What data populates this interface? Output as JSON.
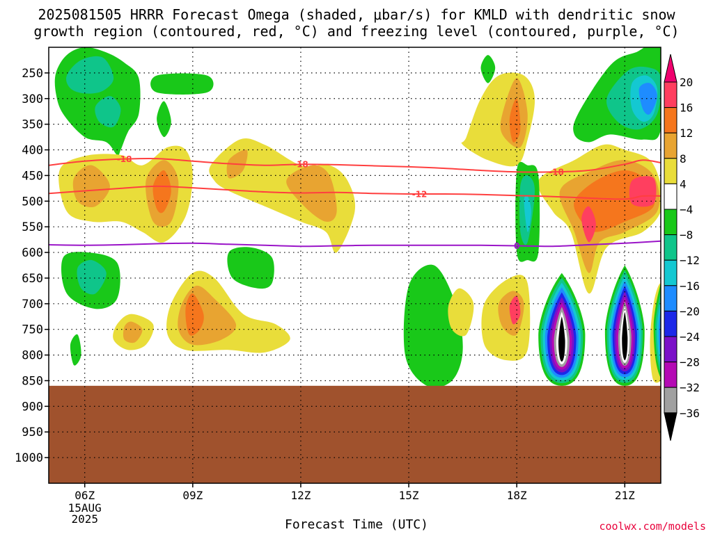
{
  "title_line1": "2025081505 HRRR Forecast Omega (shaded, μbar/s) for KMLD with dendritic snow",
  "title_line2": "growth region (contoured, red, °C) and freezing level (contoured, purple, °C)",
  "credit": "coolwx.com/models",
  "chart_data": {
    "type": "heatmap",
    "xlabel": "Forecast Time (UTC)",
    "ylabel": "",
    "x_ticks": [
      "06Z",
      "09Z",
      "12Z",
      "15Z",
      "18Z",
      "21Z"
    ],
    "x_tick_hours": [
      6,
      9,
      12,
      15,
      18,
      21
    ],
    "x_date_label": [
      "15AUG",
      "2025"
    ],
    "xlim": [
      5,
      22
    ],
    "y_ticks": [
      250,
      300,
      350,
      400,
      450,
      500,
      550,
      600,
      650,
      700,
      750,
      800,
      850,
      900,
      950,
      1000
    ],
    "ylim_hpa": [
      200,
      1050
    ],
    "ground_level_hpa": 860,
    "ground_color": "#a0522d",
    "grid": true,
    "colorbar": {
      "labels": [
        "20",
        "16",
        "12",
        "8",
        "4",
        "−4",
        "−8",
        "−12",
        "−16",
        "−20",
        "−24",
        "−28",
        "−32",
        "−36"
      ],
      "colors": [
        "#ff3f5f",
        "#f5761d",
        "#e8a431",
        "#e9dd3a",
        "#ffffff",
        "#19c819",
        "#0fc58a",
        "#14c8d2",
        "#1e8cff",
        "#1c28e8",
        "#7b10c8",
        "#b40ab4",
        "#a0a0a0"
      ],
      "top_color": "#f0006e",
      "bottom_color": "#000000"
    },
    "dgz_contours": [
      {
        "label": "-18",
        "hour": [
          5,
          6,
          7,
          8,
          9,
          10,
          11,
          12,
          13,
          14,
          15,
          16,
          17,
          18,
          19,
          20,
          21,
          21.5,
          22
        ],
        "hpa": [
          430,
          422,
          418,
          417,
          422,
          427,
          430,
          428,
          429,
          431,
          433,
          436,
          440,
          443,
          443,
          440,
          428,
          420,
          425
        ]
      },
      {
        "label": "-12",
        "hour": [
          5,
          6,
          7,
          8,
          9,
          10,
          11,
          12,
          13,
          14,
          15,
          16,
          17,
          18,
          19,
          20,
          21,
          21.5,
          22
        ],
        "hpa": [
          485,
          480,
          475,
          471,
          474,
          478,
          482,
          484,
          483,
          485,
          486,
          486,
          487,
          489,
          491,
          494,
          496,
          490,
          490
        ]
      }
    ],
    "freezing_level": {
      "label": "0",
      "hour": [
        5,
        6,
        7,
        8,
        9,
        10,
        11,
        12,
        13,
        14,
        15,
        16,
        17,
        18,
        19,
        20,
        21,
        22
      ],
      "hpa": [
        585,
        586,
        585,
        583,
        582,
        584,
        586,
        588,
        587,
        586,
        586,
        586,
        586,
        587,
        588,
        585,
        582,
        578
      ]
    },
    "omega_regions": [
      {
        "name": "upper-left-up",
        "color": "#19c819",
        "hour": [
          5.2,
          5.5,
          6.0,
          6.6,
          7.1,
          7.5,
          7.5,
          7.2,
          7.0,
          6.9,
          6.6,
          6.0,
          5.4,
          5.2
        ],
        "hpa": [
          250,
          215,
          200,
          210,
          230,
          260,
          330,
          365,
          400,
          410,
          385,
          375,
          330,
          290
        ]
      },
      {
        "name": "upper-left-core",
        "color": "#0fc58a",
        "hour": [
          5.5,
          5.9,
          6.5,
          6.8,
          6.5,
          6.0,
          5.6
        ],
        "hpa": [
          255,
          225,
          220,
          260,
          285,
          290,
          280
        ]
      },
      {
        "name": "upper-left-core-2",
        "color": "#0fc58a",
        "hour": [
          6.3,
          6.7,
          7.0,
          6.8,
          6.4
        ],
        "hpa": [
          315,
          295,
          320,
          355,
          345
        ]
      },
      {
        "name": "upper-mid-up",
        "color": "#19c819",
        "hour": [
          8.0,
          9.4,
          9.4,
          8.0
        ],
        "hpa": [
          255,
          255,
          288,
          288
        ]
      },
      {
        "name": "upper-mid-up-2",
        "color": "#19c819",
        "hour": [
          8.0,
          8.2,
          8.4,
          8.2
        ],
        "hpa": [
          340,
          305,
          345,
          375
        ]
      },
      {
        "name": "upper-right-up",
        "color": "#19c819",
        "hour": [
          19.7,
          20.6,
          21.3,
          22.0,
          22.0,
          21.5,
          20.6,
          20.0,
          19.6
        ],
        "hpa": [
          330,
          235,
          210,
          200,
          360,
          380,
          370,
          385,
          370
        ]
      },
      {
        "name": "upper-right-core",
        "color": "#0fc58a",
        "hour": [
          20.5,
          21.1,
          21.7,
          22.0,
          21.9,
          21.4,
          20.8
        ],
        "hpa": [
          300,
          245,
          240,
          260,
          330,
          360,
          345
        ]
      },
      {
        "name": "upper-right-core-2",
        "color": "#14c8d2",
        "hour": [
          21.2,
          21.6,
          21.9,
          21.8,
          21.5,
          21.2
        ],
        "hpa": [
          270,
          255,
          280,
          330,
          345,
          320
        ]
      },
      {
        "name": "upper-right-core-3",
        "color": "#1e8cff",
        "hour": [
          21.4,
          21.7,
          21.9,
          21.7,
          21.5
        ],
        "hpa": [
          280,
          270,
          295,
          330,
          320
        ]
      },
      {
        "name": "small-up-top",
        "color": "#19c819",
        "hour": [
          17.0,
          17.2,
          17.4,
          17.2
        ],
        "hpa": [
          240,
          215,
          240,
          270
        ]
      },
      {
        "name": "mid-left-down",
        "color": "#e9dd3a",
        "hour": [
          5.3,
          6.0,
          7.0,
          7.6,
          8.3,
          8.8,
          9.0,
          8.8,
          8.2,
          7.6,
          7.0,
          6.2,
          5.5
        ],
        "hpa": [
          440,
          412,
          410,
          430,
          395,
          400,
          450,
          530,
          580,
          560,
          540,
          540,
          520
        ]
      },
      {
        "name": "mid-left-down-2",
        "color": "#e8a431",
        "hour": [
          5.7,
          6.2,
          6.7,
          6.3,
          5.8
        ],
        "hpa": [
          455,
          430,
          470,
          510,
          500
        ]
      },
      {
        "name": "mid-left-down-3",
        "color": "#e8a431",
        "hour": [
          7.7,
          8.2,
          8.6,
          8.4,
          7.9
        ],
        "hpa": [
          460,
          420,
          460,
          540,
          540
        ]
      },
      {
        "name": "mid-left-down-4",
        "color": "#f5761d",
        "hour": [
          7.9,
          8.2,
          8.4,
          8.2,
          8.0
        ],
        "hpa": [
          470,
          440,
          480,
          520,
          515
        ]
      },
      {
        "name": "mid-center-down",
        "color": "#e9dd3a",
        "hour": [
          9.5,
          10.3,
          11.0,
          12.0,
          12.8,
          13.3,
          13.5,
          13.0,
          12.7,
          12.0,
          11.0,
          10.0,
          9.6
        ],
        "hpa": [
          430,
          380,
          390,
          430,
          430,
          460,
          520,
          600,
          560,
          540,
          510,
          480,
          460
        ]
      },
      {
        "name": "mid-center-down-2",
        "color": "#e8a431",
        "hour": [
          11.6,
          12.3,
          12.8,
          13.0,
          12.7,
          12.1
        ],
        "hpa": [
          460,
          430,
          450,
          520,
          540,
          510
        ]
      },
      {
        "name": "mid-center-down-3",
        "color": "#e8a431",
        "hour": [
          10.0,
          10.5,
          10.4,
          10.0
        ],
        "hpa": [
          420,
          400,
          440,
          455
        ]
      },
      {
        "name": "right-mid-down",
        "color": "#e9dd3a",
        "hour": [
          16.6,
          17.0,
          17.5,
          18.2,
          18.5,
          18.3,
          18.0,
          17.2,
          16.5
        ],
        "hpa": [
          375,
          300,
          255,
          255,
          300,
          380,
          430,
          420,
          390
        ]
      },
      {
        "name": "right-mid-down-2",
        "color": "#e8a431",
        "hour": [
          17.6,
          18.0,
          18.3,
          18.1,
          17.6
        ],
        "hpa": [
          330,
          260,
          330,
          395,
          370
        ]
      },
      {
        "name": "right-mid-down-3",
        "color": "#f5761d",
        "hour": [
          17.8,
          18.0,
          18.1,
          17.9
        ],
        "hpa": [
          340,
          300,
          360,
          385
        ]
      },
      {
        "name": "right-big-down",
        "color": "#e9dd3a",
        "hour": [
          18.6,
          19.6,
          20.4,
          21.0,
          21.7,
          22.0,
          22.0,
          21.5,
          20.5,
          20.0,
          19.5,
          19.0
        ],
        "hpa": [
          460,
          420,
          390,
          400,
          420,
          470,
          520,
          560,
          590,
          680,
          560,
          520
        ]
      },
      {
        "name": "right-big-down-2",
        "color": "#e8a431",
        "hour": [
          19.2,
          20.1,
          21.0,
          21.8,
          21.9,
          21.0,
          20.3,
          20.0,
          19.6
        ],
        "hpa": [
          480,
          440,
          420,
          450,
          520,
          560,
          580,
          640,
          560
        ]
      },
      {
        "name": "right-big-down-3",
        "color": "#f5761d",
        "hour": [
          19.6,
          20.2,
          21.0,
          21.6,
          21.8,
          21.0,
          20.2,
          19.8
        ],
        "hpa": [
          500,
          460,
          440,
          460,
          510,
          540,
          560,
          540
        ]
      },
      {
        "name": "right-big-down-4",
        "color": "#ff3f5f",
        "hour": [
          21.2,
          21.8,
          21.8,
          21.2
        ],
        "hpa": [
          460,
          455,
          505,
          505
        ]
      },
      {
        "name": "right-big-down-5",
        "color": "#ff3f5f",
        "hour": [
          19.8,
          20.0,
          20.2,
          20.0
        ],
        "hpa": [
          535,
          510,
          545,
          580
        ]
      },
      {
        "name": "mid-lower-up",
        "color": "#19c819",
        "hour": [
          18.0,
          18.3,
          18.6,
          18.6,
          18.3,
          18.0
        ],
        "hpa": [
          440,
          430,
          450,
          600,
          615,
          600
        ]
      },
      {
        "name": "mid-lower-up-2",
        "color": "#0fc58a",
        "hour": [
          18.1,
          18.3,
          18.5,
          18.3,
          18.1
        ],
        "hpa": [
          470,
          450,
          480,
          580,
          560
        ]
      },
      {
        "name": "mid-lower-up-3",
        "color": "#14c8d2",
        "hour": [
          18.2,
          18.3,
          18.4,
          18.3
        ],
        "hpa": [
          500,
          490,
          520,
          560
        ]
      },
      {
        "name": "lower-left-up",
        "color": "#19c819",
        "hour": [
          5.4,
          6.1,
          6.9,
          6.9,
          6.3,
          5.5
        ],
        "hpa": [
          610,
          600,
          620,
          690,
          710,
          680
        ]
      },
      {
        "name": "lower-left-up-2",
        "color": "#0fc58a",
        "hour": [
          5.8,
          6.2,
          6.6,
          6.3,
          5.9
        ],
        "hpa": [
          630,
          615,
          640,
          680,
          670
        ]
      },
      {
        "name": "lower-left-up-3",
        "color": "#19c819",
        "hour": [
          5.6,
          5.8,
          5.9,
          5.7
        ],
        "hpa": [
          780,
          760,
          800,
          820
        ]
      },
      {
        "name": "lower-center-up",
        "color": "#19c819",
        "hour": [
          10.0,
          10.6,
          11.2,
          11.2,
          10.8,
          10.1
        ],
        "hpa": [
          600,
          590,
          610,
          660,
          670,
          650
        ]
      },
      {
        "name": "lower-center-up-2",
        "color": "#19c819",
        "hour": [
          15.0,
          15.7,
          16.3,
          16.5,
          16.2,
          15.5,
          14.9
        ],
        "hpa": [
          665,
          625,
          700,
          790,
          850,
          860,
          800
        ]
      },
      {
        "name": "lower-left-down",
        "color": "#e9dd3a",
        "hour": [
          8.4,
          9.0,
          9.6,
          10.4,
          11.3,
          11.7,
          11.0,
          10.0,
          8.8,
          8.3
        ],
        "hpa": [
          700,
          640,
          650,
          720,
          740,
          770,
          795,
          790,
          790,
          760
        ]
      },
      {
        "name": "lower-left-down-2",
        "color": "#e8a431",
        "hour": [
          8.7,
          9.1,
          9.6,
          10.2,
          9.8,
          9.0,
          8.6
        ],
        "hpa": [
          700,
          665,
          690,
          740,
          770,
          780,
          750
        ]
      },
      {
        "name": "lower-left-down-3",
        "color": "#f5761d",
        "hour": [
          8.8,
          9.0,
          9.3,
          9.2,
          8.9
        ],
        "hpa": [
          710,
          680,
          720,
          750,
          760
        ]
      },
      {
        "name": "lower-left-down-4",
        "color": "#e9dd3a",
        "hour": [
          6.9,
          7.3,
          7.9,
          7.7,
          7.2,
          6.8
        ],
        "hpa": [
          740,
          720,
          740,
          780,
          790,
          770
        ]
      },
      {
        "name": "lower-left-down-5",
        "color": "#e8a431",
        "hour": [
          7.1,
          7.3,
          7.6,
          7.4,
          7.1
        ],
        "hpa": [
          745,
          735,
          750,
          775,
          770
        ]
      },
      {
        "name": "lower-mid-down",
        "color": "#e9dd3a",
        "hour": [
          16.1,
          16.4,
          16.8,
          16.6,
          16.2
        ],
        "hpa": [
          705,
          670,
          700,
          760,
          750
        ]
      },
      {
        "name": "lower-right-down",
        "color": "#e9dd3a",
        "hour": [
          17.1,
          17.8,
          18.3,
          18.3,
          17.7,
          17.1
        ],
        "hpa": [
          700,
          650,
          660,
          790,
          810,
          780
        ]
      },
      {
        "name": "lower-right-down-2",
        "color": "#e8a431",
        "hour": [
          17.5,
          17.9,
          18.2,
          18.0,
          17.6
        ],
        "hpa": [
          700,
          675,
          700,
          760,
          745
        ]
      },
      {
        "name": "lower-right-down-3",
        "color": "#ff3f5f",
        "hour": [
          17.8,
          18.0,
          18.1,
          17.9
        ],
        "hpa": [
          705,
          685,
          720,
          740
        ]
      },
      {
        "name": "lower-right-down-4",
        "color": "#e9dd3a",
        "hour": [
          21.8,
          22.0,
          22.2,
          22.1,
          21.8,
          21.7
        ],
        "hpa": [
          700,
          660,
          700,
          830,
          850,
          780
        ]
      },
      {
        "name": "lower-right-down-5",
        "color": "#f5761d",
        "hour": [
          21.85,
          22.0,
          22.1,
          22.0,
          21.85
        ],
        "hpa": [
          710,
          680,
          710,
          810,
          800
        ]
      },
      {
        "name": "lower-right-down-6",
        "color": "#f0006e",
        "hour": [
          21.9,
          22.0,
          22.05,
          22.0,
          21.9
        ],
        "hpa": [
          720,
          700,
          730,
          800,
          790
        ]
      }
    ],
    "omega_plumes": [
      {
        "name": "plume-1",
        "center_hour": 19.25,
        "top_hpa": 640,
        "bottom_hpa": 860,
        "half_width_hours": 0.65
      },
      {
        "name": "plume-2",
        "center_hour": 21.0,
        "top_hpa": 625,
        "bottom_hpa": 860,
        "half_width_hours": 0.55
      },
      {
        "name": "plume-3",
        "center_hour": 22.3,
        "top_hpa": 600,
        "bottom_hpa": 860,
        "half_width_hours": 0.5
      }
    ],
    "plume_colors": [
      "#19c819",
      "#0fc58a",
      "#14c8d2",
      "#1e8cff",
      "#1c28e8",
      "#7b10c8",
      "#b40ab4",
      "#a0a0a0",
      "#ffffff",
      "#000000"
    ]
  }
}
